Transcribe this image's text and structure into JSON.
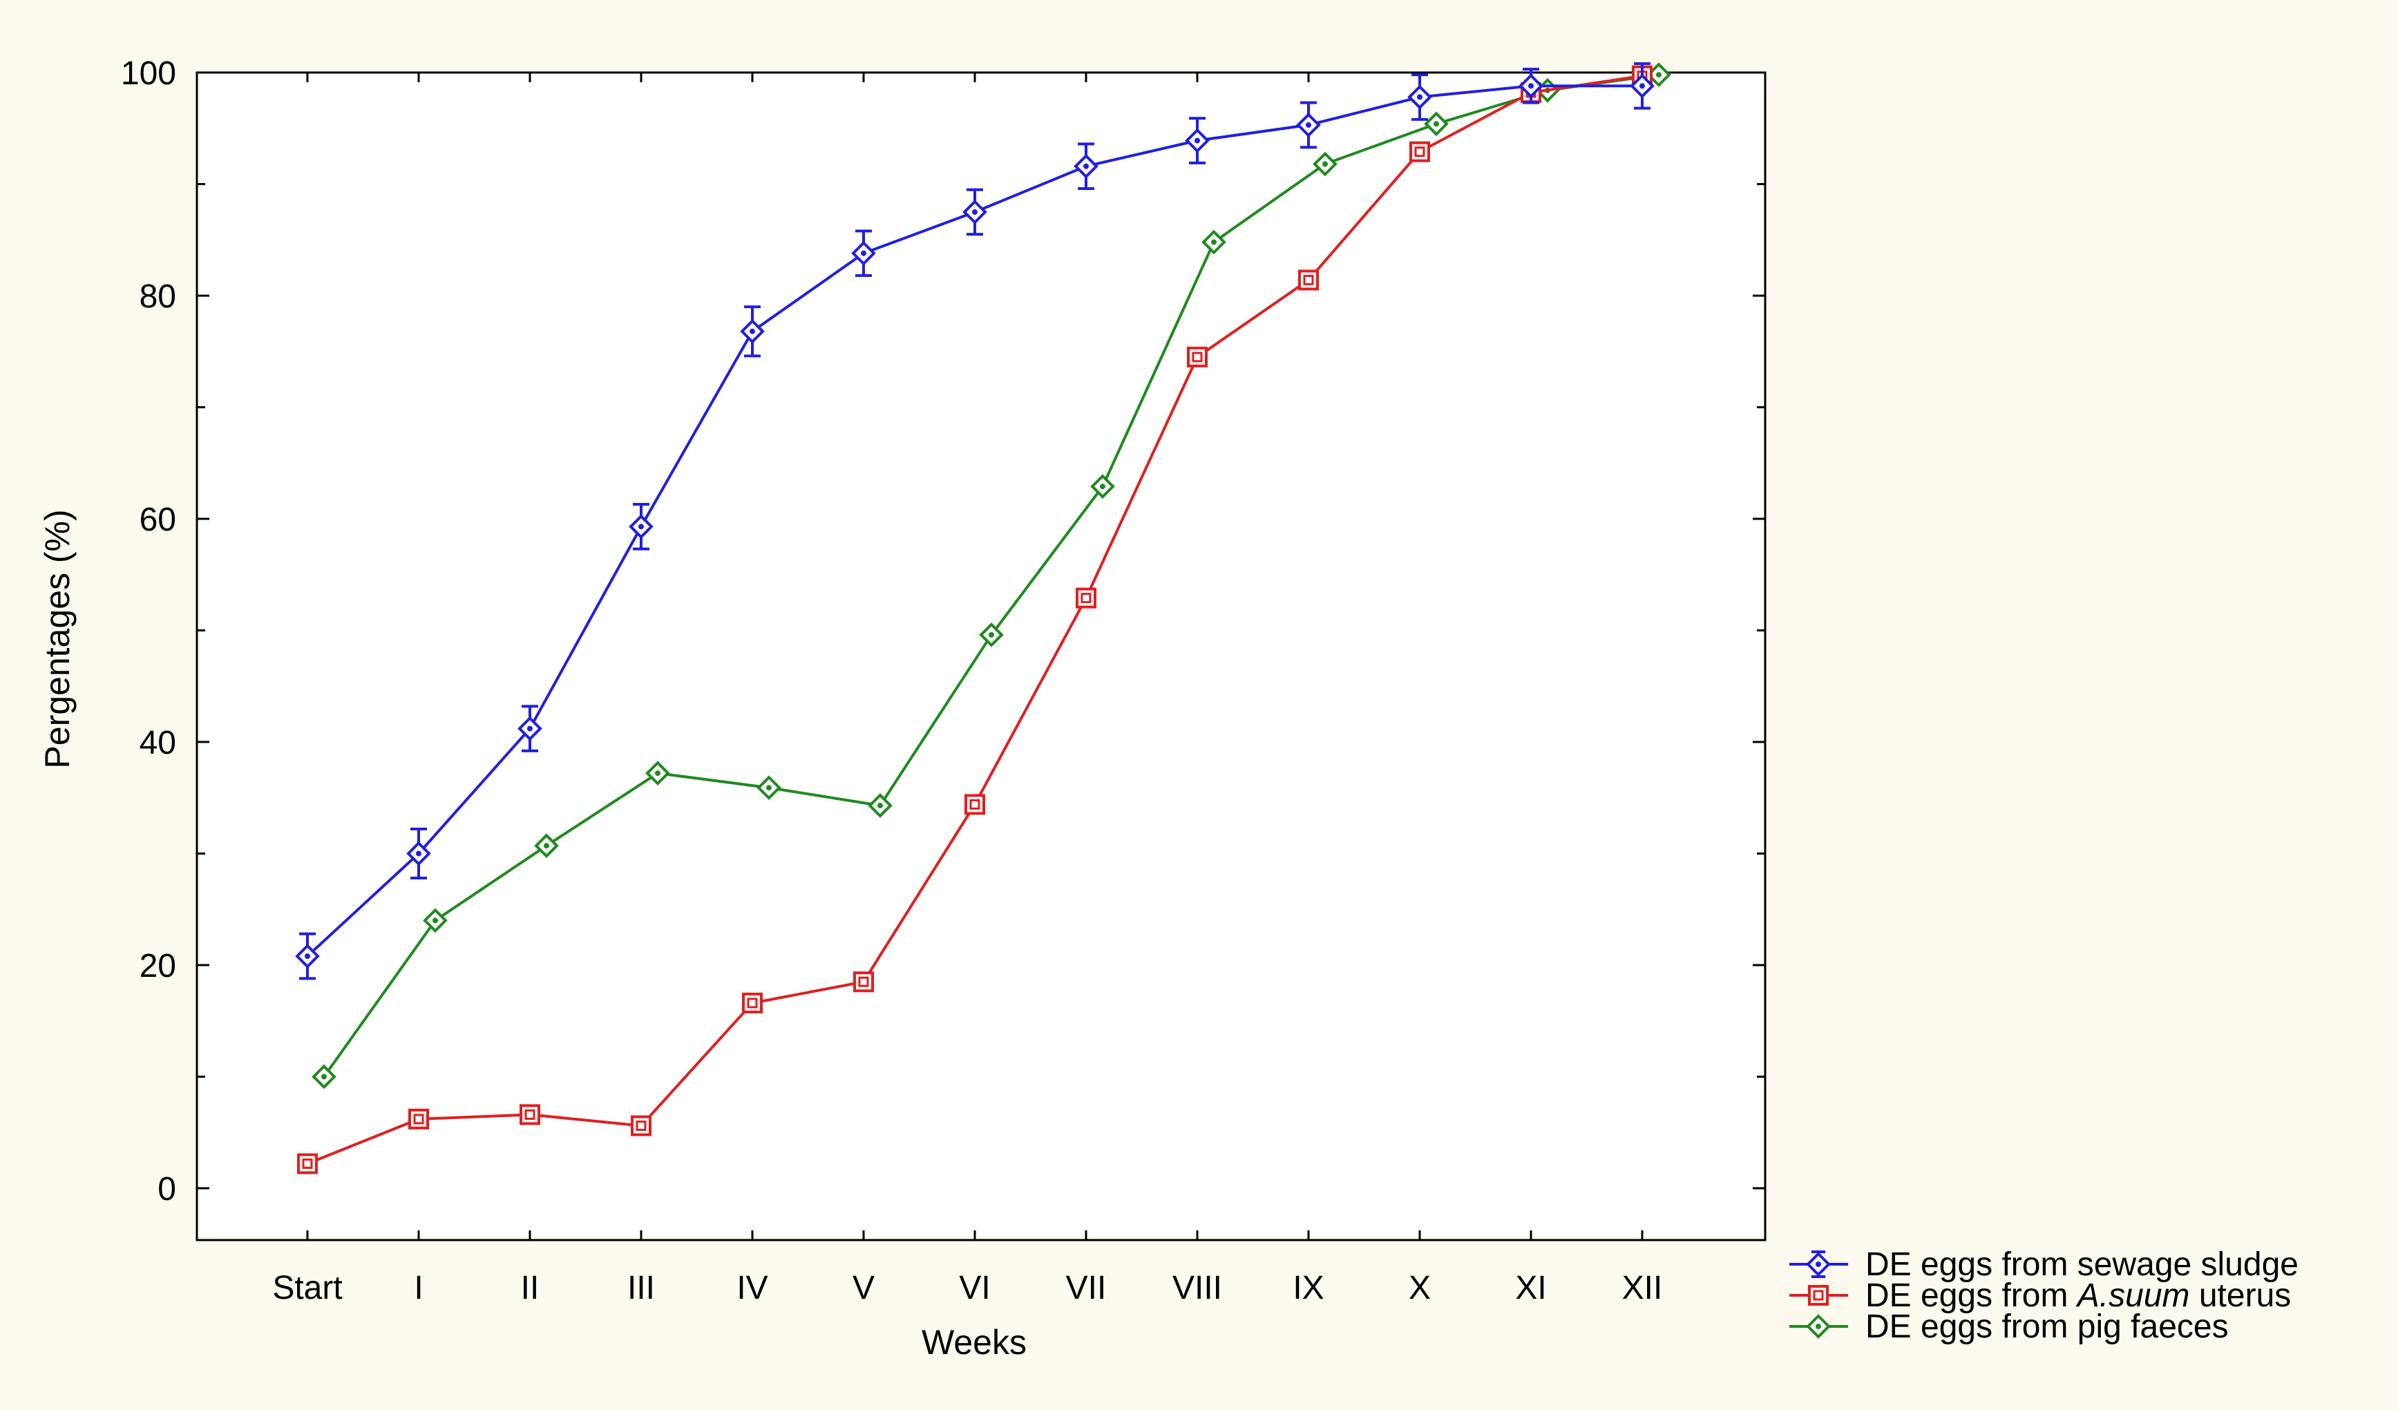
{
  "chart_data": {
    "type": "line",
    "title": "",
    "xlabel": "Weeks",
    "ylabel": "Pergentages (%)",
    "categories": [
      "Start",
      "I",
      "II",
      "III",
      "IV",
      "V",
      "VI",
      "VII",
      "VIII",
      "IX",
      "X",
      "XI",
      "XII"
    ],
    "ylim": [
      -5,
      100
    ],
    "yticks": [
      0,
      20,
      40,
      60,
      80,
      100
    ],
    "grid": true,
    "legend_position": "bottom-right",
    "series": [
      {
        "name": "DE eggs from sewage sludge",
        "legend_parts": [
          {
            "text": "DE eggs from sewage sludge",
            "italic": false
          }
        ],
        "color": "#1f1fe0",
        "marker": "diamond",
        "values": [
          20.8,
          30.0,
          41.2,
          59.3,
          76.8,
          83.8,
          87.5,
          91.6,
          93.9,
          95.3,
          97.8,
          98.8,
          98.8
        ],
        "error": [
          2.0,
          2.2,
          2.0,
          2.0,
          2.2,
          2.0,
          2.0,
          2.0,
          2.0,
          2.0,
          2.0,
          1.5,
          2.0
        ]
      },
      {
        "name": "DE eggs from A.suum uterus",
        "legend_parts": [
          {
            "text": "DE eggs from ",
            "italic": false
          },
          {
            "text": "A.suum",
            "italic": true
          },
          {
            "text": " uterus",
            "italic": false
          }
        ],
        "color": "#e01f1f",
        "marker": "square",
        "values": [
          2.2,
          6.2,
          6.6,
          5.6,
          16.6,
          18.5,
          34.4,
          52.9,
          74.5,
          81.4,
          92.9,
          98.2,
          99.7
        ]
      },
      {
        "name": "DE eggs from pig faeces",
        "legend_parts": [
          {
            "text": "DE eggs from pig faeces",
            "italic": false
          }
        ],
        "color": "#1f8a1f",
        "marker": "diamond",
        "values": [
          10.0,
          24.0,
          30.7,
          37.2,
          35.9,
          34.3,
          49.6,
          62.9,
          84.8,
          91.8,
          95.4,
          98.4,
          99.8
        ]
      }
    ]
  }
}
